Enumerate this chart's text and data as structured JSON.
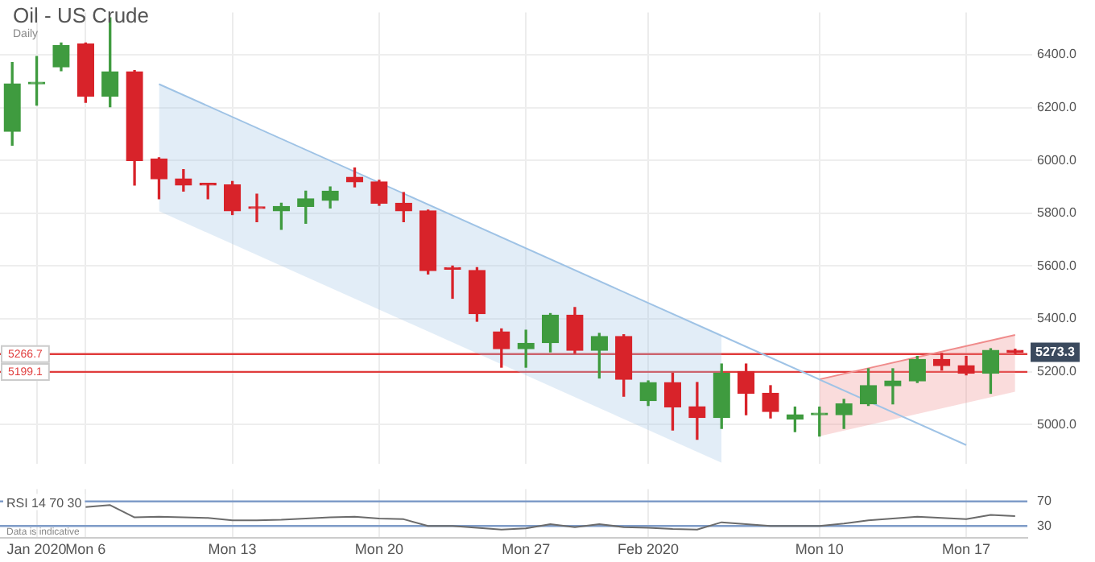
{
  "chart_data": [
    {
      "type": "candlestick",
      "title": "Oil - US Crude",
      "subtitle": "Daily",
      "categories": [
        null,
        null,
        null,
        null,
        null,
        null,
        null,
        null,
        null,
        null,
        null,
        null,
        null,
        null,
        null,
        null,
        null,
        null,
        null,
        null,
        null,
        null,
        null,
        null,
        null,
        null,
        null,
        null,
        null,
        null,
        null,
        null,
        null,
        null,
        null,
        null,
        null,
        null,
        null,
        null,
        null,
        null
      ],
      "ohlc": [
        [
          6110,
          6371,
          6058,
          6290
        ],
        [
          6290,
          6394,
          6209,
          6292
        ],
        [
          6354,
          6445,
          6340,
          6435
        ],
        [
          6441,
          6445,
          6220,
          6243
        ],
        [
          6243,
          6540,
          6203,
          6336
        ],
        [
          6336,
          6340,
          5907,
          6000
        ],
        [
          6006,
          6010,
          5855,
          5930
        ],
        [
          5930,
          5965,
          5884,
          5907
        ],
        [
          5910,
          5913,
          5855,
          5907
        ],
        [
          5907,
          5920,
          5795,
          5809
        ],
        [
          5820,
          5872,
          5768,
          5818
        ],
        [
          5809,
          5838,
          5739,
          5826
        ],
        [
          5826,
          5884,
          5762,
          5855
        ],
        [
          5849,
          5900,
          5820,
          5884
        ],
        [
          5936,
          5971,
          5900,
          5919
        ],
        [
          5919,
          5925,
          5830,
          5838
        ],
        [
          5838,
          5878,
          5768,
          5809
        ],
        [
          5809,
          5812,
          5570,
          5583
        ],
        [
          5590,
          5600,
          5478,
          5588
        ],
        [
          5583,
          5594,
          5391,
          5420
        ],
        [
          5351,
          5362,
          5217,
          5287
        ],
        [
          5287,
          5357,
          5217,
          5307
        ],
        [
          5310,
          5420,
          5275,
          5414
        ],
        [
          5414,
          5443,
          5270,
          5281
        ],
        [
          5281,
          5345,
          5176,
          5333
        ],
        [
          5333,
          5340,
          5107,
          5171
        ],
        [
          5090,
          5165,
          5072,
          5159
        ],
        [
          5159,
          5194,
          4979,
          5067
        ],
        [
          5067,
          5159,
          4944,
          5026
        ],
        [
          5026,
          5229,
          4985,
          5194
        ],
        [
          5200,
          5229,
          5037,
          5118
        ],
        [
          5118,
          5147,
          5025,
          5049
        ],
        [
          5020,
          5066,
          4973,
          5037
        ],
        [
          5037,
          5066,
          4956,
          5039
        ],
        [
          5037,
          5095,
          4985,
          5078
        ],
        [
          5078,
          5211,
          5072,
          5147
        ],
        [
          5147,
          5211,
          5078,
          5165
        ],
        [
          5165,
          5258,
          5159,
          5246
        ],
        [
          5246,
          5269,
          5206,
          5223
        ],
        [
          5223,
          5258,
          5188,
          5194
        ],
        [
          5194,
          5287,
          5118,
          5281
        ],
        [
          5281,
          5285,
          5270,
          5273.3
        ]
      ],
      "colors": [
        "#3f9b3f",
        "#3f9b3f",
        "#3f9b3f",
        "#d8232a",
        "#3f9b3f",
        "#d8232a",
        "#d8232a",
        "#d8232a",
        "#d8232a",
        "#d8232a",
        "#d8232a",
        "#3f9b3f",
        "#3f9b3f",
        "#3f9b3f",
        "#d8232a",
        "#d8232a",
        "#d8232a",
        "#d8232a",
        "#d8232a",
        "#d8232a",
        "#d8232a",
        "#3f9b3f",
        "#3f9b3f",
        "#d8232a",
        "#3f9b3f",
        "#d8232a",
        "#3f9b3f",
        "#d8232a",
        "#d8232a",
        "#3f9b3f",
        "#d8232a",
        "#d8232a",
        "#3f9b3f",
        "#3f9b3f",
        "#3f9b3f",
        "#3f9b3f",
        "#3f9b3f",
        "#3f9b3f",
        "#d8232a",
        "#d8232a",
        "#3f9b3f",
        "#d8232a"
      ],
      "series": [
        {
          "type": "line",
          "color": "#9fc3e6",
          "values": [
            null,
            null,
            null,
            null,
            null,
            null,
            6289,
            null,
            null,
            null,
            null,
            null,
            null,
            null,
            null,
            null,
            null,
            null,
            null,
            null,
            null,
            null,
            null,
            null,
            null,
            null,
            null,
            null,
            null,
            5336,
            null,
            null,
            null,
            null,
            null,
            null,
            null,
            null,
            null,
            4922,
            null,
            null
          ],
          "upper": [
            null,
            null,
            null,
            null,
            null,
            null,
            6289,
            null,
            null,
            null,
            null,
            null,
            null,
            null,
            null,
            null,
            null,
            null,
            null,
            null,
            null,
            null,
            null,
            null,
            null,
            null,
            null,
            null,
            null,
            5336,
            null,
            null,
            null,
            null,
            null,
            null,
            null,
            null,
            null,
            null,
            null,
            null
          ],
          "lower": [
            null,
            null,
            null,
            null,
            null,
            null,
            5808,
            null,
            null,
            null,
            null,
            null,
            null,
            null,
            null,
            null,
            null,
            null,
            null,
            null,
            null,
            null,
            null,
            null,
            null,
            null,
            null,
            null,
            null,
            4855,
            null,
            null,
            null,
            null,
            null,
            null,
            null,
            null,
            null,
            null,
            null,
            null
          ]
        },
        {
          "type": "line",
          "color": "#f08c8c",
          "values": [
            null,
            null,
            null,
            null,
            null,
            null,
            null,
            null,
            null,
            null,
            null,
            null,
            null,
            null,
            null,
            null,
            null,
            null,
            null,
            null,
            null,
            null,
            null,
            null,
            null,
            null,
            null,
            null,
            null,
            null,
            null,
            null,
            null,
            5171,
            null,
            null,
            null,
            null,
            null,
            null,
            null,
            5339
          ],
          "upper": [
            null,
            null,
            null,
            null,
            null,
            null,
            null,
            null,
            null,
            null,
            null,
            null,
            null,
            null,
            null,
            null,
            null,
            null,
            null,
            null,
            null,
            null,
            null,
            null,
            null,
            null,
            null,
            null,
            null,
            null,
            null,
            null,
            null,
            5171,
            null,
            null,
            null,
            null,
            null,
            null,
            null,
            5339
          ],
          "lower": [
            null,
            null,
            null,
            null,
            null,
            null,
            null,
            null,
            null,
            null,
            null,
            null,
            null,
            null,
            null,
            null,
            null,
            null,
            null,
            null,
            null,
            null,
            null,
            null,
            null,
            null,
            null,
            null,
            null,
            null,
            null,
            null,
            null,
            4956,
            null,
            null,
            null,
            null,
            null,
            null,
            null,
            5124
          ]
        }
      ],
      "ylim": [
        4850,
        6560
      ],
      "yticks": [
        {
          "value": 5000,
          "label": "5000.0"
        },
        {
          "value": 5200,
          "label": "5200.0"
        },
        {
          "value": 5400,
          "label": "5400.0"
        },
        {
          "value": 5600,
          "label": "5600.0"
        },
        {
          "value": 5800,
          "label": "5800.0"
        },
        {
          "value": 6000,
          "label": "6000.0"
        },
        {
          "value": 6200,
          "label": "6200.0"
        },
        {
          "value": 6400,
          "label": "6400.0"
        }
      ],
      "ref_lines": [
        {
          "axis": "y",
          "value": 5266.7,
          "label": "5266.7",
          "color": "#e03c3c"
        },
        {
          "axis": "y",
          "value": 5199.1,
          "label": "5199.1",
          "color": "#e03c3c"
        }
      ],
      "annotations": [
        {
          "text": "5273.3",
          "y": 5273.3
        }
      ],
      "grid": true,
      "tick_labels": "y"
    },
    {
      "type": "line",
      "title": "RSI 14 70 30",
      "categories": [
        null,
        "Jan 2020",
        null,
        "Mon 6",
        null,
        null,
        null,
        null,
        null,
        "Mon 13",
        null,
        null,
        null,
        null,
        null,
        "Mon 20",
        null,
        null,
        null,
        null,
        null,
        "Mon 27",
        null,
        null,
        null,
        null,
        "Feb 2020",
        null,
        null,
        null,
        null,
        null,
        null,
        "Mon 10",
        null,
        null,
        null,
        null,
        null,
        "Mon 17",
        null,
        null
      ],
      "series": [
        {
          "color": "#6b6b6b",
          "values": [
            null,
            null,
            null,
            61,
            64,
            44,
            45,
            44,
            43,
            39,
            39,
            40,
            42,
            44,
            45,
            42,
            41,
            30,
            30,
            27,
            24,
            26,
            33,
            28,
            33,
            28,
            27,
            25,
            24,
            36,
            33,
            30,
            30,
            30,
            34,
            39,
            42,
            45,
            43,
            41,
            48,
            46
          ]
        }
      ],
      "ylim": [
        10,
        90
      ],
      "yticks": [
        30,
        70
      ],
      "ref_lines": [
        {
          "axis": "y",
          "value": 70,
          "color": "#7f9cc8"
        },
        {
          "axis": "y",
          "value": 30,
          "color": "#7f9cc8"
        }
      ],
      "annotations": [
        "Data is indicative"
      ],
      "grid": "x"
    }
  ]
}
